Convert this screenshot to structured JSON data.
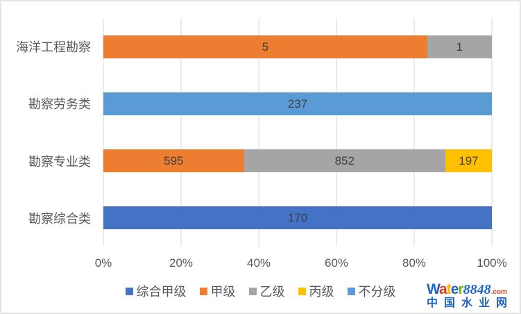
{
  "chart_data": {
    "type": "bar",
    "orientation": "horizontal",
    "stacked": true,
    "percent_stacked": true,
    "title": "",
    "xlabel": "",
    "ylabel": "",
    "categories": [
      "海洋工程勘察",
      "勘察劳务类",
      "勘察专业类",
      "勘察综合类"
    ],
    "series": [
      {
        "name": "综合甲级",
        "color": "#4472C4",
        "values": [
          0,
          0,
          0,
          170
        ]
      },
      {
        "name": "甲级",
        "color": "#ED7D31",
        "values": [
          5,
          0,
          595,
          0
        ]
      },
      {
        "name": "乙级",
        "color": "#A5A5A5",
        "values": [
          1,
          0,
          852,
          0
        ]
      },
      {
        "name": "丙级",
        "color": "#FFC000",
        "values": [
          0,
          0,
          197,
          0
        ]
      },
      {
        "name": "不分级",
        "color": "#5B9BD5",
        "values": [
          0,
          237,
          0,
          0
        ]
      }
    ],
    "x_ticks": [
      "0%",
      "20%",
      "40%",
      "60%",
      "80%",
      "100%"
    ],
    "xlim": [
      0,
      100
    ],
    "grid": true,
    "data_labels": true,
    "legend_position": "bottom"
  },
  "colors": {
    "gridline": "#D9D9D9",
    "axis_text": "#595959",
    "data_label_text": "#404040",
    "frame_border": "#E4E4E4",
    "background": "#FFFFFF"
  },
  "watermark": {
    "brand_letters": [
      {
        "ch": "W",
        "color": "#1F63C6"
      },
      {
        "ch": "a",
        "color": "#E33A1E"
      },
      {
        "ch": "t",
        "color": "#F8B500"
      },
      {
        "ch": "e",
        "color": "#1F63C6"
      },
      {
        "ch": "r",
        "color": "#6FB41E"
      }
    ],
    "brand_number": "8848",
    "brand_tld": ".com",
    "subtitle": "中国水业网"
  }
}
